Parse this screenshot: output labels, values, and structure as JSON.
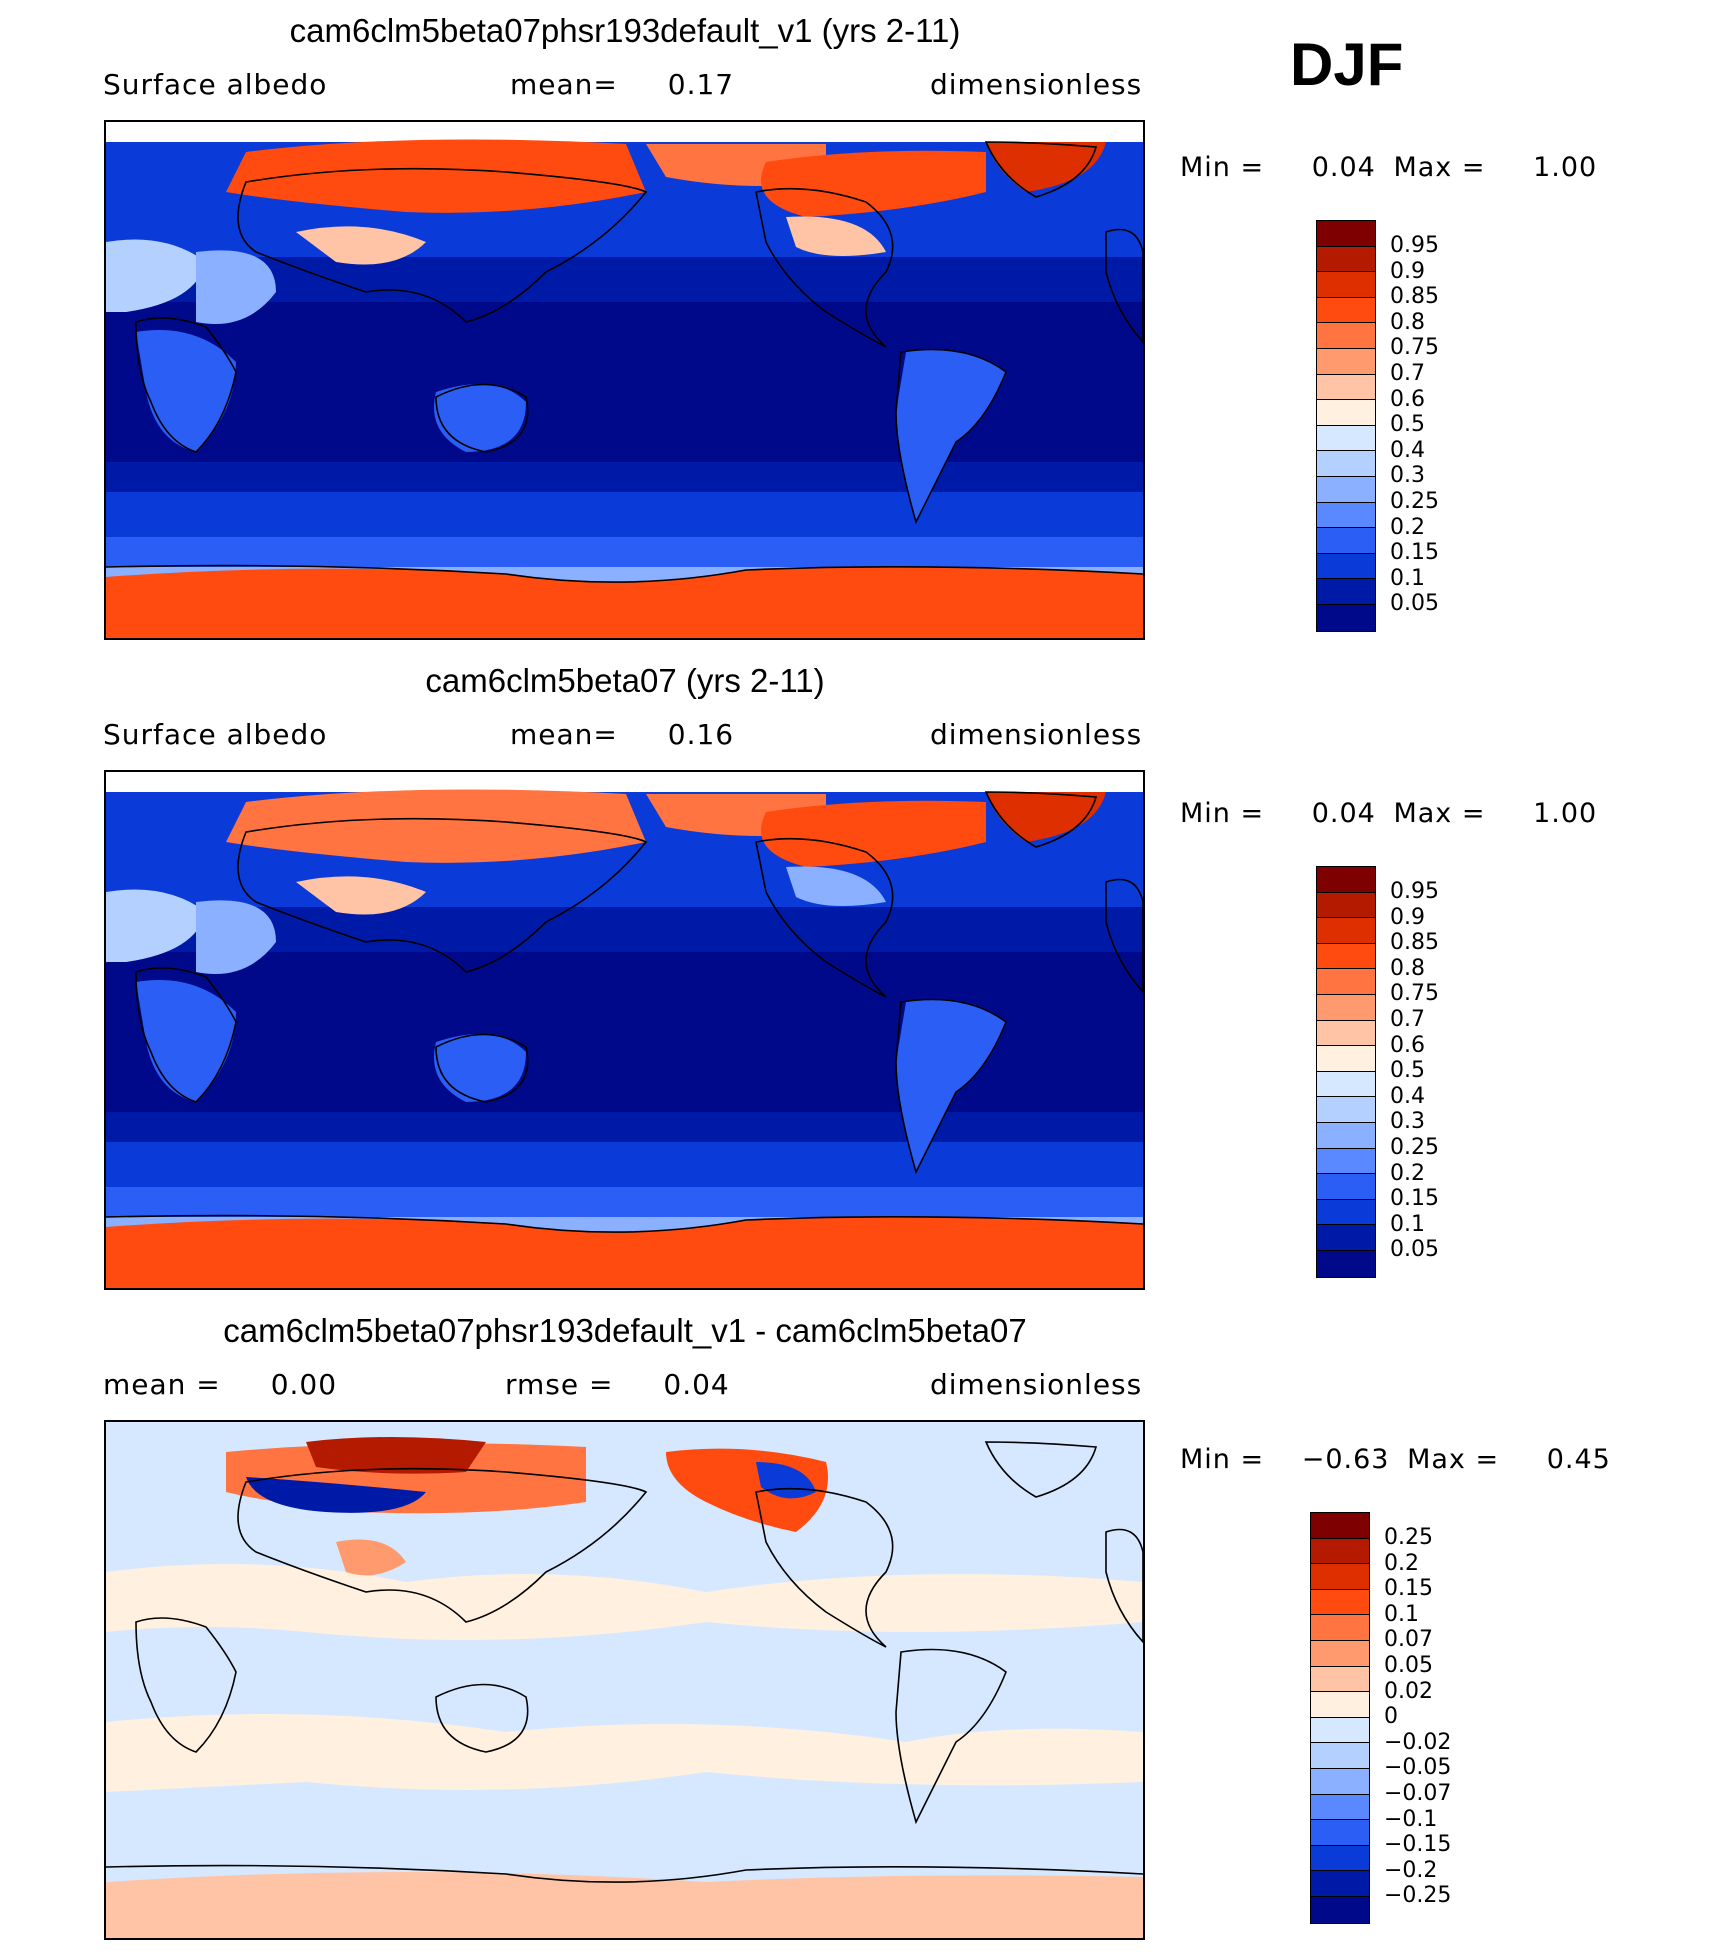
{
  "season": "DJF",
  "panels": [
    {
      "title": "cam6clm5beta07phsr193default_v1 (yrs 2-11)",
      "left_label": "Surface albedo",
      "center_label": "mean=",
      "center_value": "0.17",
      "right_label": "dimensionless",
      "min_label": "Min =",
      "min_value": "0.04",
      "max_label": "Max =",
      "max_value": "1.00",
      "colorbar": {
        "labels": [
          "0.95",
          "0.9",
          "0.85",
          "0.8",
          "0.75",
          "0.7",
          "0.6",
          "0.5",
          "0.4",
          "0.3",
          "0.25",
          "0.2",
          "0.15",
          "0.1",
          "0.05"
        ],
        "colors": [
          "#7f0000",
          "#b31a00",
          "#dd2f00",
          "#ff4a10",
          "#ff7440",
          "#ff9a6e",
          "#ffc4a6",
          "#fff0e0",
          "#d6e8ff",
          "#b4d0ff",
          "#8ab0ff",
          "#5a88ff",
          "#2a5ef5",
          "#0a3ad8",
          "#001aa8",
          "#00098a"
        ]
      }
    },
    {
      "title": "cam6clm5beta07 (yrs 2-11)",
      "left_label": "Surface albedo",
      "center_label": "mean=",
      "center_value": "0.16",
      "right_label": "dimensionless",
      "min_label": "Min =",
      "min_value": "0.04",
      "max_label": "Max =",
      "max_value": "1.00",
      "colorbar": {
        "labels": [
          "0.95",
          "0.9",
          "0.85",
          "0.8",
          "0.75",
          "0.7",
          "0.6",
          "0.5",
          "0.4",
          "0.3",
          "0.25",
          "0.2",
          "0.15",
          "0.1",
          "0.05"
        ],
        "colors": [
          "#7f0000",
          "#b31a00",
          "#dd2f00",
          "#ff4a10",
          "#ff7440",
          "#ff9a6e",
          "#ffc4a6",
          "#fff0e0",
          "#d6e8ff",
          "#b4d0ff",
          "#8ab0ff",
          "#5a88ff",
          "#2a5ef5",
          "#0a3ad8",
          "#001aa8",
          "#00098a"
        ]
      }
    },
    {
      "title": "cam6clm5beta07phsr193default_v1 - cam6clm5beta07",
      "left_label": "mean =",
      "left_value": "0.00",
      "center_label": "rmse =",
      "center_value": "0.04",
      "right_label": "dimensionless",
      "min_label": "Min =",
      "min_value": "−0.63",
      "max_label": "Max =",
      "max_value": "0.45",
      "colorbar": {
        "labels": [
          "0.25",
          "0.2",
          "0.15",
          "0.1",
          "0.07",
          "0.05",
          "0.02",
          "0",
          "−0.02",
          "−0.05",
          "−0.07",
          "−0.1",
          "−0.15",
          "−0.2",
          "−0.25"
        ],
        "colors": [
          "#7f0000",
          "#b31a00",
          "#dd2f00",
          "#ff4a10",
          "#ff7440",
          "#ff9a6e",
          "#ffc4a6",
          "#fff0e0",
          "#d6e8ff",
          "#b4d0ff",
          "#8ab0ff",
          "#5a88ff",
          "#2a5ef5",
          "#0a3ad8",
          "#001aa8",
          "#00098a"
        ]
      }
    }
  ]
}
